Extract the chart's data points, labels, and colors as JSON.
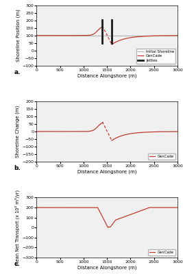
{
  "panel_a": {
    "ylabel": "Shoreline Position (m)",
    "xlabel": "Distance Alongshore (m)",
    "label": "a.",
    "ylim": [
      -100,
      300
    ],
    "yticks": [
      -100,
      -50,
      0,
      50,
      100,
      150,
      200,
      250,
      300
    ],
    "xlim": [
      0,
      3000
    ],
    "xticks": [
      0,
      500,
      1000,
      1500,
      2000,
      2500,
      3000
    ]
  },
  "panel_b": {
    "ylabel": "Shoreline Change (m)",
    "xlabel": "Distance Alongshore (m)",
    "label": "b.",
    "ylim": [
      -200,
      200
    ],
    "yticks": [
      -200,
      -150,
      -100,
      -50,
      0,
      50,
      100,
      150,
      200
    ],
    "xlim": [
      0,
      3000
    ],
    "xticks": [
      0,
      500,
      1000,
      1500,
      2000,
      2500,
      3000
    ]
  },
  "panel_c": {
    "ylabel": "Mean Net Transport (x 10² m³/yr)",
    "xlabel": "Distance Alongshore (m)",
    "label": "c.",
    "ylim": [
      -300,
      300
    ],
    "yticks": [
      -300,
      -200,
      -100,
      0,
      100,
      200,
      300
    ],
    "xlim": [
      0,
      3000
    ],
    "xticks": [
      0,
      500,
      1000,
      1500,
      2000,
      2500,
      3000
    ]
  },
  "line_color": "#c0392b",
  "initial_color": "#b0b0b0",
  "jetty_color": "#1a1a1a",
  "background_color": "#f0f0f0",
  "fig_background": "#ffffff",
  "initial_y": 100,
  "jetty1_x": 1400,
  "jetty2_x": 1600,
  "jetty_ybot": 50,
  "jetty_ytop": 205
}
